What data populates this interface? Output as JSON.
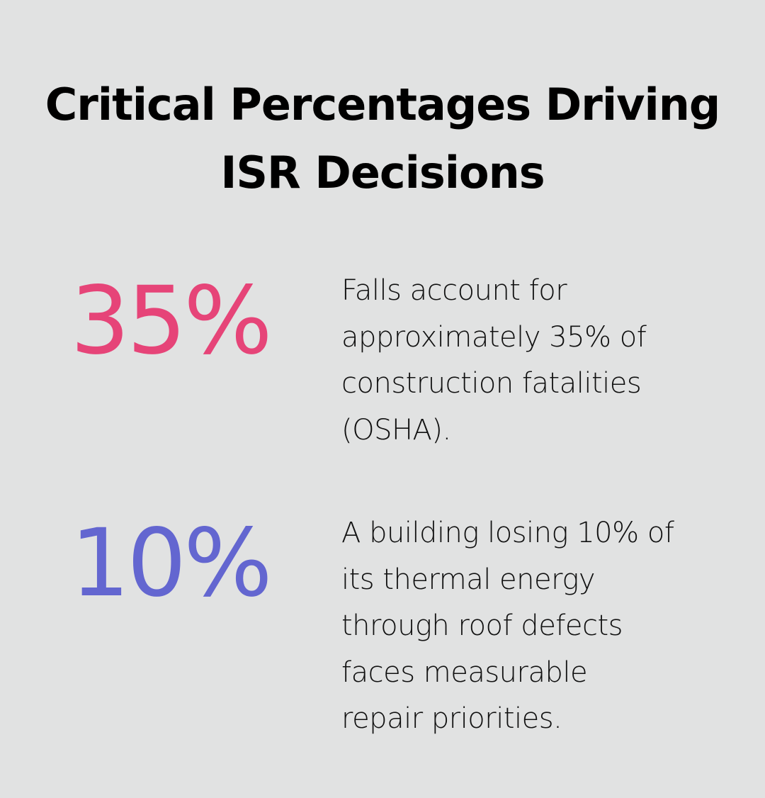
{
  "title_lines": [
    "Critical Percentages Driving",
    "ISR Decisions"
  ],
  "stats": [
    {
      "value": "35%",
      "color": "#e64478",
      "description_lines": [
        "Falls account for",
        "approximately 35% of",
        "construction fatalities",
        "(OSHA)."
      ]
    },
    {
      "value": "10%",
      "color": "#6366d0",
      "description_lines": [
        "A building losing 10% of",
        "its thermal energy",
        "through roof defects",
        "faces measurable",
        "repair priorities."
      ]
    }
  ]
}
